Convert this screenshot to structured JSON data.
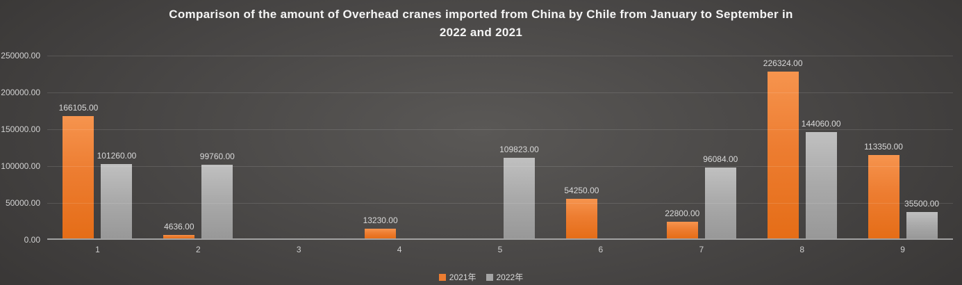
{
  "title": {
    "full": "Comparison of the amount of Overhead cranes imported from China by Chile from January to September in 2022 and 2021",
    "line1": "Comparison of the amount of Overhead cranes imported from China by Chile from January to September in",
    "line2": "2022 and 2021"
  },
  "chart_data": {
    "type": "bar",
    "title": "Comparison of the amount of Overhead cranes imported from China by Chile from January to September in 2022 and 2021",
    "categories": [
      "1",
      "2",
      "3",
      "4",
      "5",
      "6",
      "7",
      "8",
      "9"
    ],
    "series": [
      {
        "name": "2021年",
        "key": "2021",
        "color": "#ed7d31",
        "values": [
          166105,
          4636,
          null,
          13230,
          null,
          54250,
          22800,
          226324,
          113350
        ]
      },
      {
        "name": "2022年",
        "key": "2022",
        "color": "#a5a5a5",
        "values": [
          101260,
          99760,
          null,
          null,
          109823,
          null,
          96084,
          144060,
          35500
        ]
      }
    ],
    "value_label_decimals": 2,
    "ylim": [
      0,
      250000
    ],
    "y_ticks": [
      {
        "value": 250000,
        "label": "250000.00"
      },
      {
        "value": 200000,
        "label": "200000.00"
      },
      {
        "value": 150000,
        "label": "150000.00"
      },
      {
        "value": 100000,
        "label": "100000.00"
      },
      {
        "value": 50000,
        "label": "50000.00"
      },
      {
        "value": 0,
        "label": "0.00"
      }
    ],
    "grid": true,
    "legend_position": "bottom"
  },
  "colors": {
    "series_2021": "#ed7d31",
    "series_2022": "#a5a5a5",
    "title_text": "#f5f5f5",
    "axis_text": "#d2d2d2",
    "axis_line": "#a2a2a2",
    "background_center": "#5a5856",
    "background_edge": "#1f1e1d"
  }
}
